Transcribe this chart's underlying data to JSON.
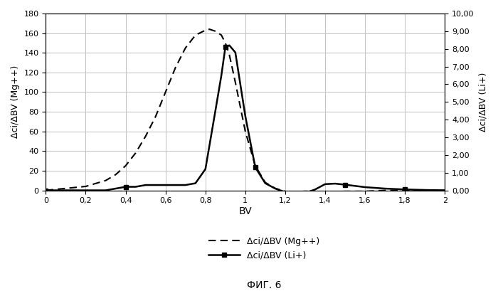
{
  "mg_x": [
    0,
    0.05,
    0.1,
    0.15,
    0.2,
    0.25,
    0.3,
    0.35,
    0.4,
    0.45,
    0.5,
    0.55,
    0.6,
    0.65,
    0.7,
    0.75,
    0.8,
    0.82,
    0.85,
    0.88,
    0.9,
    0.92,
    0.95,
    1.0,
    1.05,
    1.1,
    1.15,
    1.2,
    1.25,
    1.3,
    1.35,
    1.4,
    1.5,
    1.6,
    1.7,
    1.8,
    2.0
  ],
  "mg_y": [
    0,
    1,
    2,
    3,
    4,
    7,
    10,
    16,
    25,
    38,
    55,
    75,
    100,
    125,
    145,
    158,
    163,
    164,
    162,
    158,
    150,
    138,
    110,
    60,
    25,
    8,
    2,
    -1,
    -2,
    -3,
    -3,
    -2,
    -1,
    -1,
    0,
    0,
    0
  ],
  "li_x": [
    0,
    0.1,
    0.2,
    0.3,
    0.4,
    0.45,
    0.5,
    0.55,
    0.6,
    0.65,
    0.7,
    0.75,
    0.8,
    0.85,
    0.88,
    0.9,
    0.92,
    0.95,
    1.0,
    1.05,
    1.1,
    1.15,
    1.2,
    1.25,
    1.3,
    1.35,
    1.4,
    1.45,
    1.5,
    1.55,
    1.6,
    1.7,
    1.8,
    1.9,
    2.0
  ],
  "li_y": [
    0,
    0,
    0,
    0,
    0.2,
    0.2,
    0.3,
    0.3,
    0.3,
    0.3,
    0.3,
    0.4,
    1.2,
    4.5,
    6.5,
    8.1,
    8.2,
    7.8,
    4.2,
    1.3,
    0.4,
    0.1,
    -0.1,
    -0.15,
    -0.15,
    0.05,
    0.35,
    0.38,
    0.32,
    0.25,
    0.18,
    0.1,
    0.05,
    0.02,
    0
  ],
  "li_markers_x": [
    0,
    0.4,
    0.9,
    1.05,
    1.3,
    1.5,
    1.8
  ],
  "li_markers_y": [
    0,
    0.2,
    8.1,
    1.3,
    -0.15,
    0.32,
    0.05
  ],
  "ylabel_left": "Δci/ΔBV (Mg++)",
  "ylabel_right": "Δci/ΔBV (Li+)",
  "xlabel": "BV",
  "ylim_left": [
    0,
    180
  ],
  "ylim_right": [
    0,
    10.0
  ],
  "xlim": [
    0,
    2
  ],
  "yticks_left": [
    0,
    20,
    40,
    60,
    80,
    100,
    120,
    140,
    160,
    180
  ],
  "yticks_right": [
    0,
    1,
    2,
    3,
    4,
    5,
    6,
    7,
    8,
    9,
    10
  ],
  "ytick_right_labels": [
    "0,00",
    "1,00",
    "2,00",
    "3,00",
    "4,00",
    "5,00",
    "6,00",
    "7,00",
    "8,00",
    "9,00",
    "10,00"
  ],
  "xticks": [
    0,
    0.2,
    0.4,
    0.6,
    0.8,
    1.0,
    1.2,
    1.4,
    1.6,
    1.8,
    2.0
  ],
  "xtick_labels": [
    "0",
    "0,2",
    "0,4",
    "0,6",
    "0,8",
    "1",
    "1,2",
    "1,4",
    "1,6",
    "1,8",
    "2"
  ],
  "legend_mg": "Δci/ΔBV (Mg++)",
  "legend_li": "Δci/ΔBV (Li+)",
  "fig_label": "ФИГ. 6",
  "bg_color": "#ffffff",
  "line_color": "#000000",
  "grid_color": "#c0c0c0"
}
